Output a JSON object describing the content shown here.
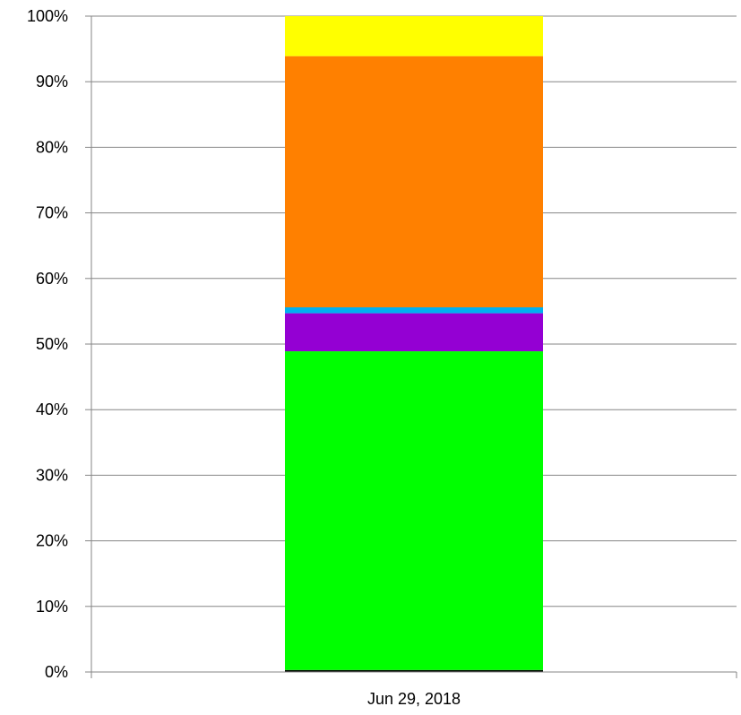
{
  "chart_data": {
    "type": "bar",
    "stacked": true,
    "percent_stacked": true,
    "categories": [
      "Jun 29, 2018"
    ],
    "series": [
      {
        "values": [
          0.3
        ],
        "color": "#000000"
      },
      {
        "values": [
          48.6
        ],
        "color": "#00ff00"
      },
      {
        "values": [
          5.8
        ],
        "color": "#9400d3"
      },
      {
        "values": [
          0.9
        ],
        "color": "#00b0f0"
      },
      {
        "values": [
          38.3
        ],
        "color": "#ff8000"
      },
      {
        "values": [
          6.1
        ],
        "color": "#ffff00"
      }
    ],
    "ylim": [
      0,
      100
    ],
    "y_ticks": [
      0,
      10,
      20,
      30,
      40,
      50,
      60,
      70,
      80,
      90,
      100
    ],
    "y_tick_labels": [
      "0%",
      "10%",
      "20%",
      "30%",
      "40%",
      "50%",
      "60%",
      "70%",
      "80%",
      "90%",
      "100%"
    ],
    "grid": true,
    "legend": "none",
    "title": "",
    "xlabel": "",
    "ylabel": ""
  }
}
